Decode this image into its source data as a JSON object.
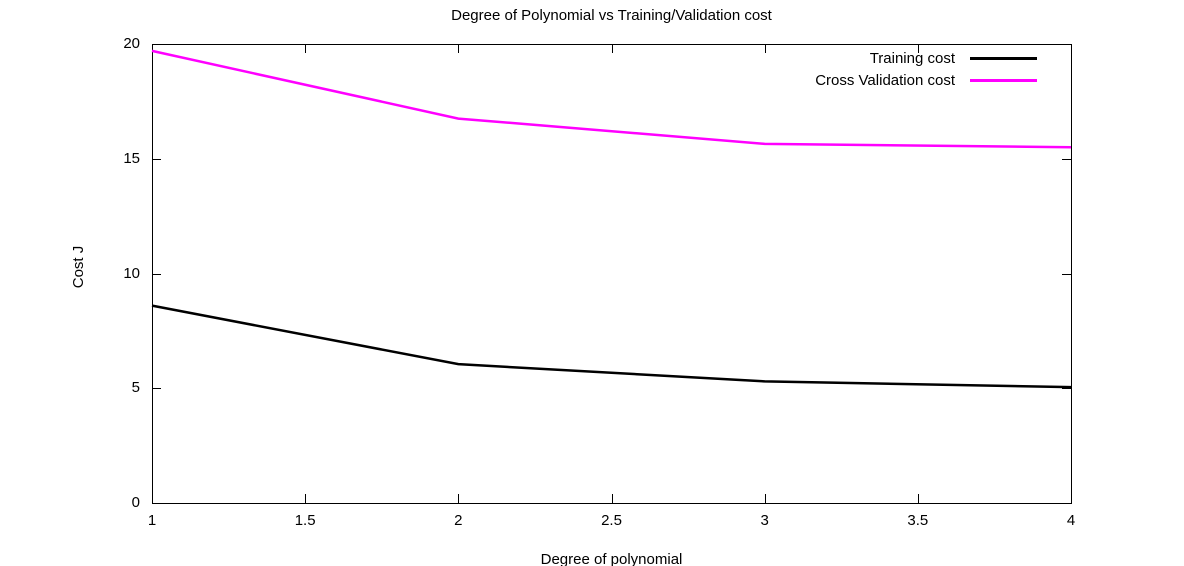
{
  "page": {
    "background": "#ffffff"
  },
  "chart_data": {
    "type": "line",
    "title": "Degree of Polynomial vs Training/Validation cost",
    "xlabel": "Degree of polynomial",
    "ylabel": "Cost J",
    "x": [
      1,
      2,
      3,
      4
    ],
    "series": [
      {
        "name": "Training cost",
        "color": "#000000",
        "values": [
          8.6,
          6.05,
          5.3,
          5.05
        ]
      },
      {
        "name": "Cross Validation cost",
        "color": "#ff00ff",
        "values": [
          19.7,
          16.75,
          15.65,
          15.5
        ]
      }
    ],
    "xlim": [
      1,
      4
    ],
    "ylim": [
      0,
      20
    ],
    "xticks": [
      1,
      1.5,
      2,
      2.5,
      3,
      3.5,
      4
    ],
    "yticks": [
      0,
      5,
      10,
      15,
      20
    ],
    "grid": false,
    "legend_position": "top-right",
    "axis_color": "#000000",
    "line_width": 2.5
  }
}
